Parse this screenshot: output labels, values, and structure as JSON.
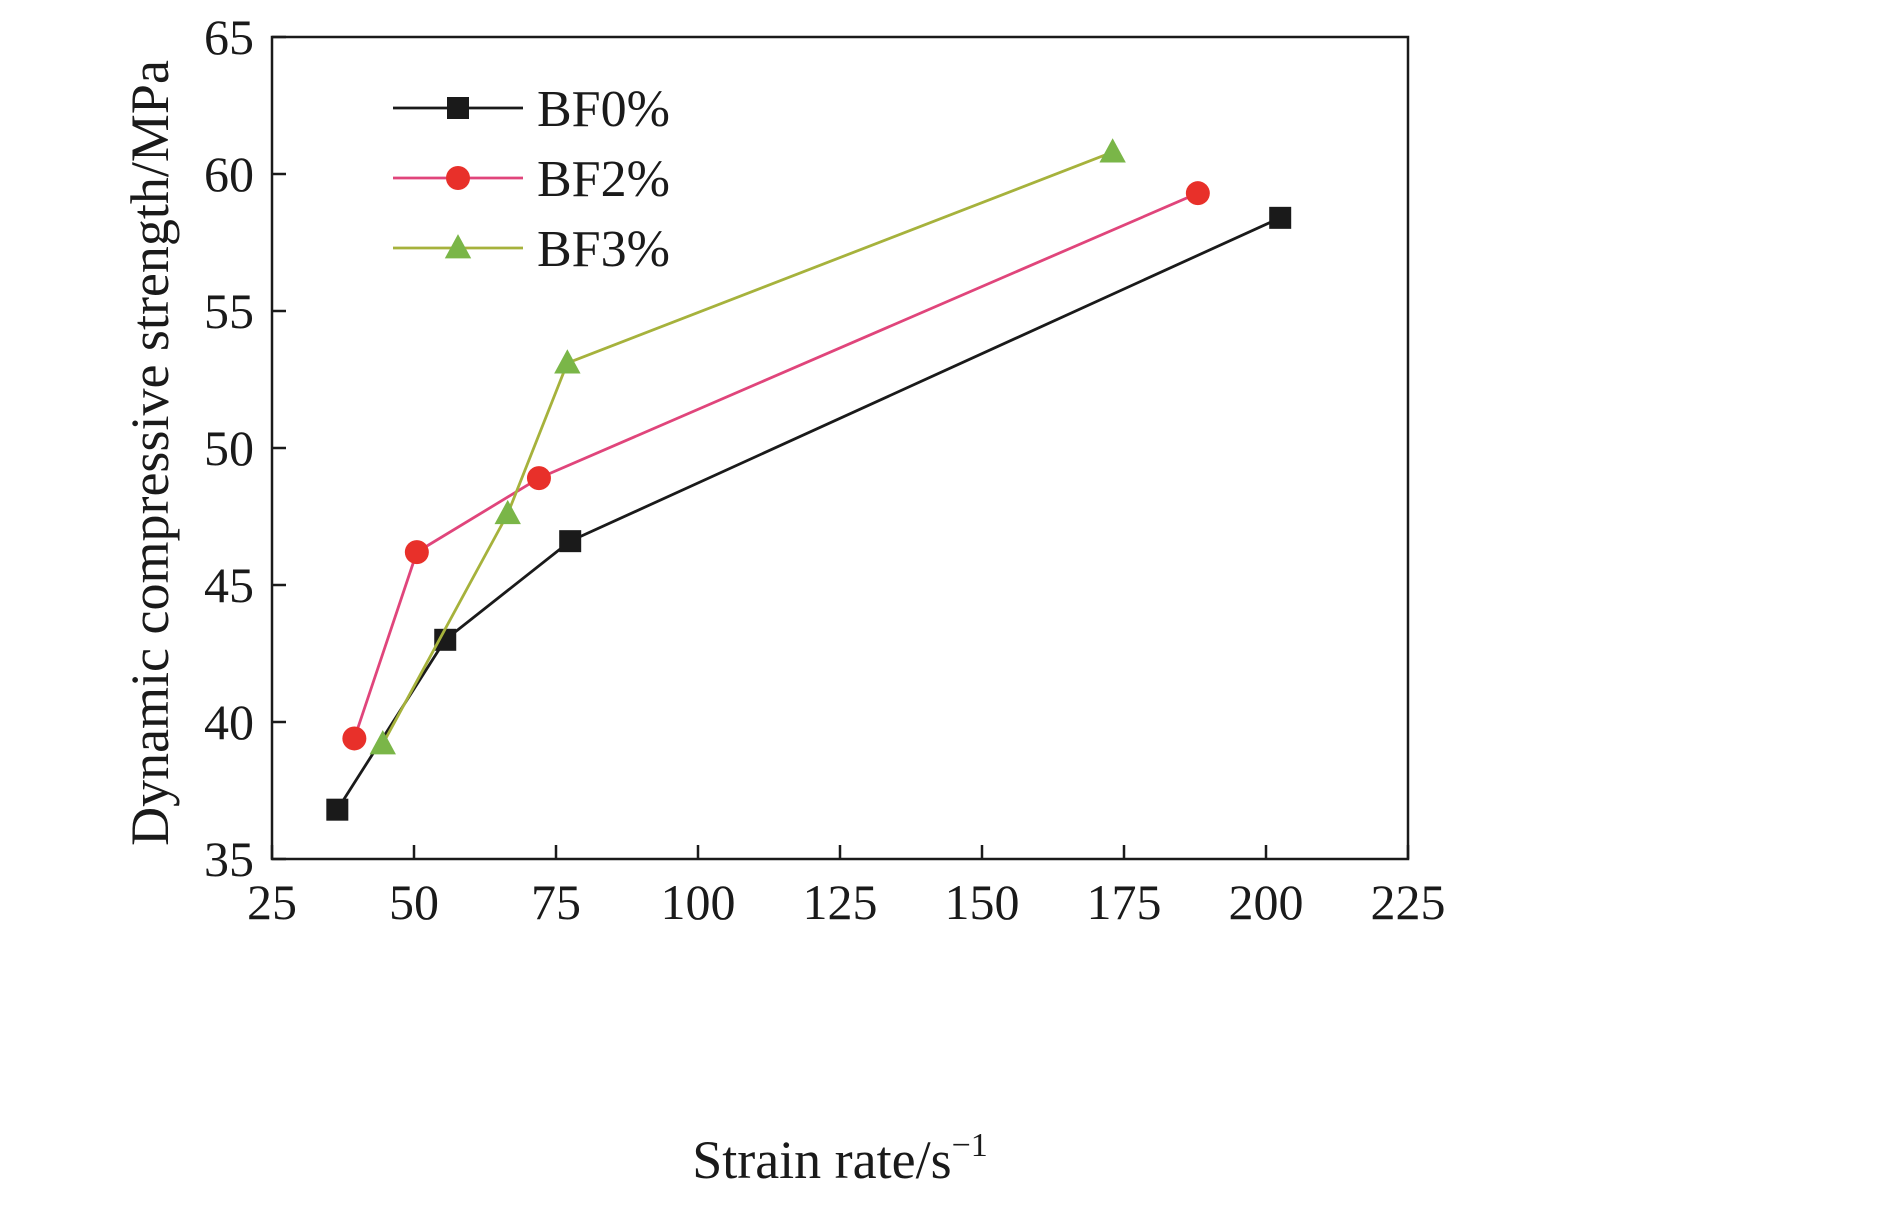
{
  "chart_data": {
    "type": "line",
    "title": "",
    "xlabel": "Strain rate/s",
    "xlabel_sup": "−1",
    "ylabel": "Dynamic compressive strength/MPa",
    "xlim": [
      25,
      225
    ],
    "ylim": [
      35,
      65
    ],
    "x_ticks": [
      25,
      50,
      75,
      100,
      125,
      150,
      175,
      200,
      225
    ],
    "y_ticks": [
      35,
      40,
      45,
      50,
      55,
      60,
      65
    ],
    "grid": false,
    "legend_position": "top-left",
    "series": [
      {
        "name": "BF0%",
        "color": "#1a1a1a",
        "marker": "square",
        "x": [
          36.5,
          55.5,
          77.5,
          202.5
        ],
        "y": [
          36.8,
          43.0,
          46.6,
          58.4
        ]
      },
      {
        "name": "BF2%",
        "color": "#e0457b",
        "marker_color": "#e8302a",
        "marker": "circle",
        "x": [
          39.5,
          50.5,
          72.0,
          188.0
        ],
        "y": [
          39.4,
          46.2,
          48.9,
          59.3
        ]
      },
      {
        "name": "BF3%",
        "color": "#a6b23c",
        "marker_color": "#7ab648",
        "marker": "triangle",
        "x": [
          44.5,
          66.5,
          77.0,
          173.0
        ],
        "y": [
          39.2,
          47.6,
          53.1,
          60.8
        ]
      }
    ]
  }
}
